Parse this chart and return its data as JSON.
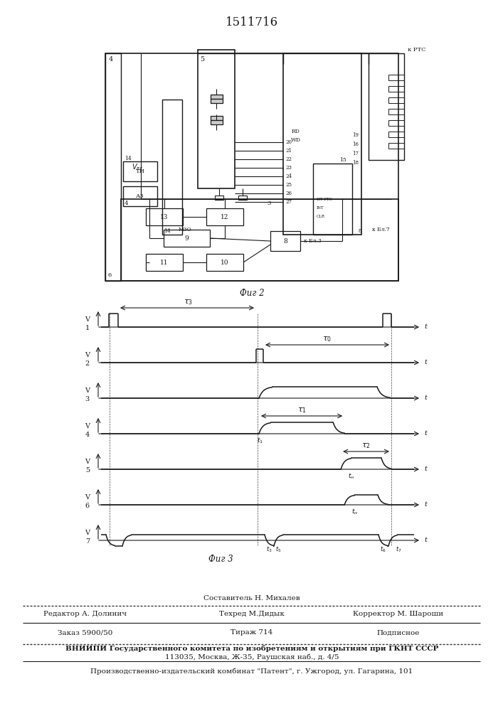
{
  "title": "1511716",
  "fig2_label": "Фиг 2",
  "fig3_label": "Фиг 3",
  "line_color": "#1a1a1a"
}
